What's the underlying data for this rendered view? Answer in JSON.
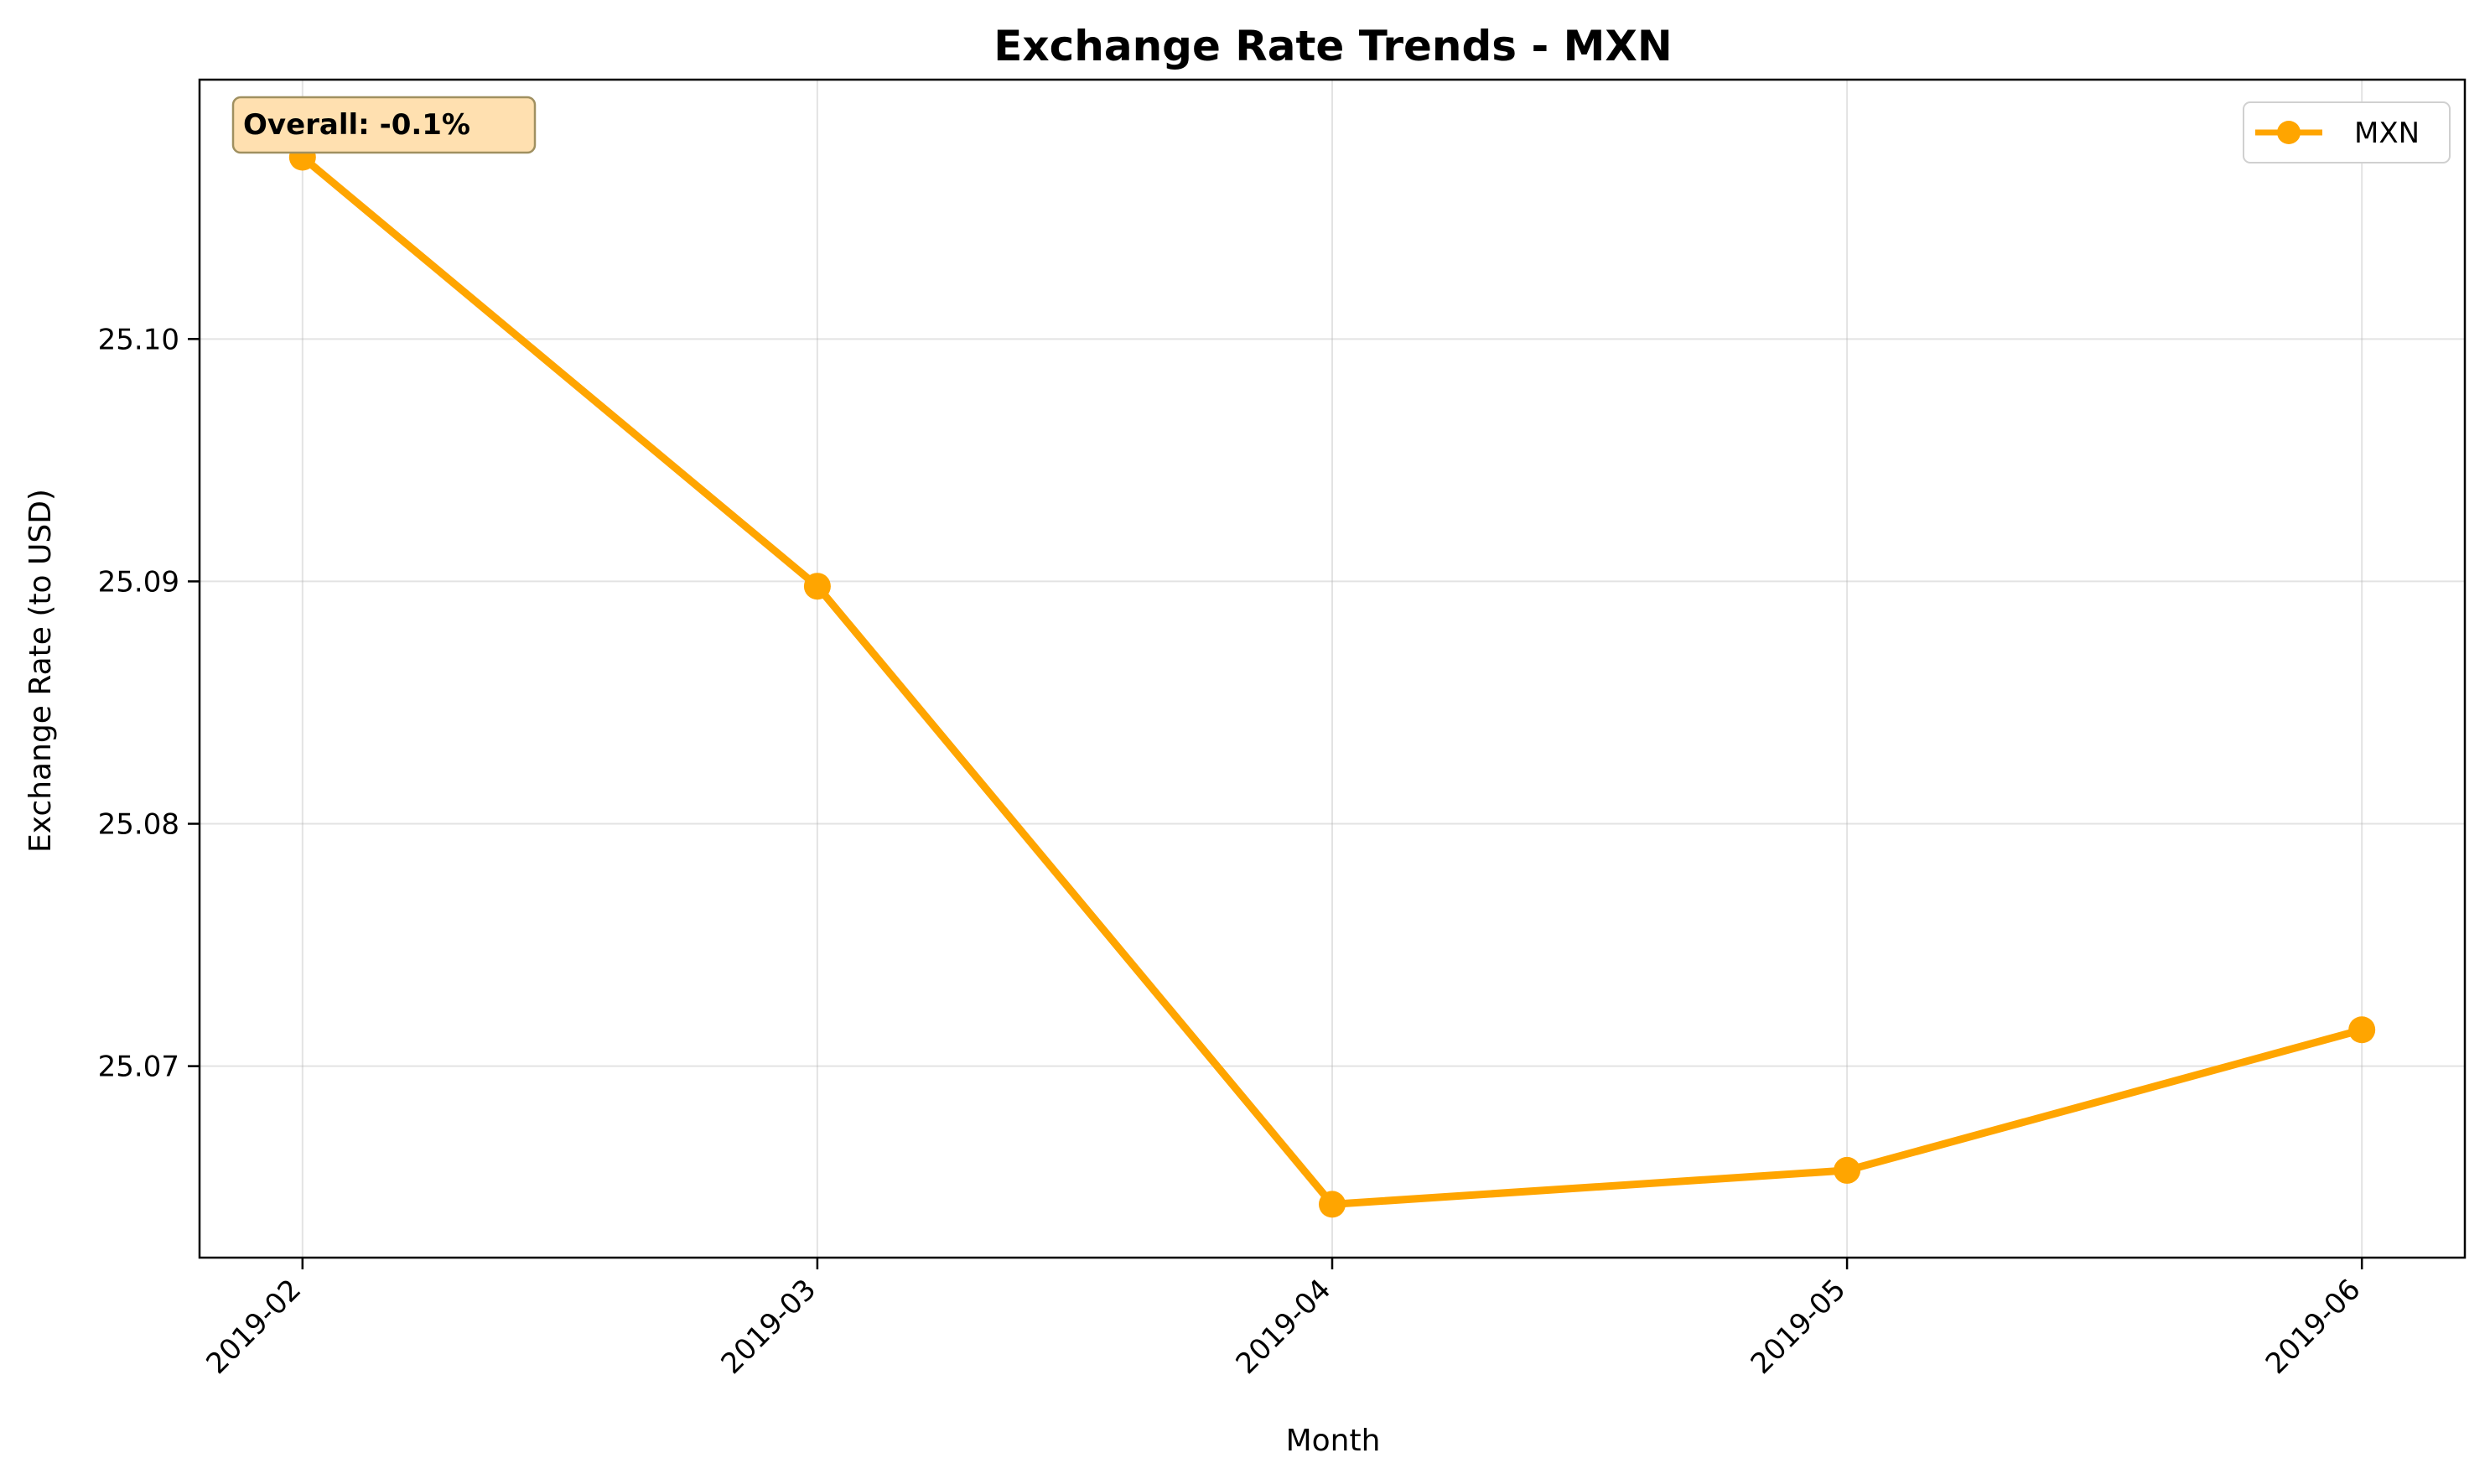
{
  "chart_data": {
    "type": "line",
    "title": "Exchange Rate Trends - MXN",
    "xlabel": "Month",
    "ylabel": "Exchange Rate (to USD)",
    "categories": [
      "2019-02",
      "2019-03",
      "2019-04",
      "2019-05",
      "2019-06"
    ],
    "series": [
      {
        "name": "MXN",
        "values": [
          25.1075,
          25.0898,
          25.0643,
          25.0657,
          25.0715
        ],
        "color": "#FFA500"
      }
    ],
    "yticks": [
      "25.07",
      "25.08",
      "25.09",
      "25.10"
    ],
    "ylim": [
      25.0621,
      25.1107
    ],
    "grid": true,
    "legend_position": "top-right",
    "annotation": "Overall: -0.1%"
  }
}
